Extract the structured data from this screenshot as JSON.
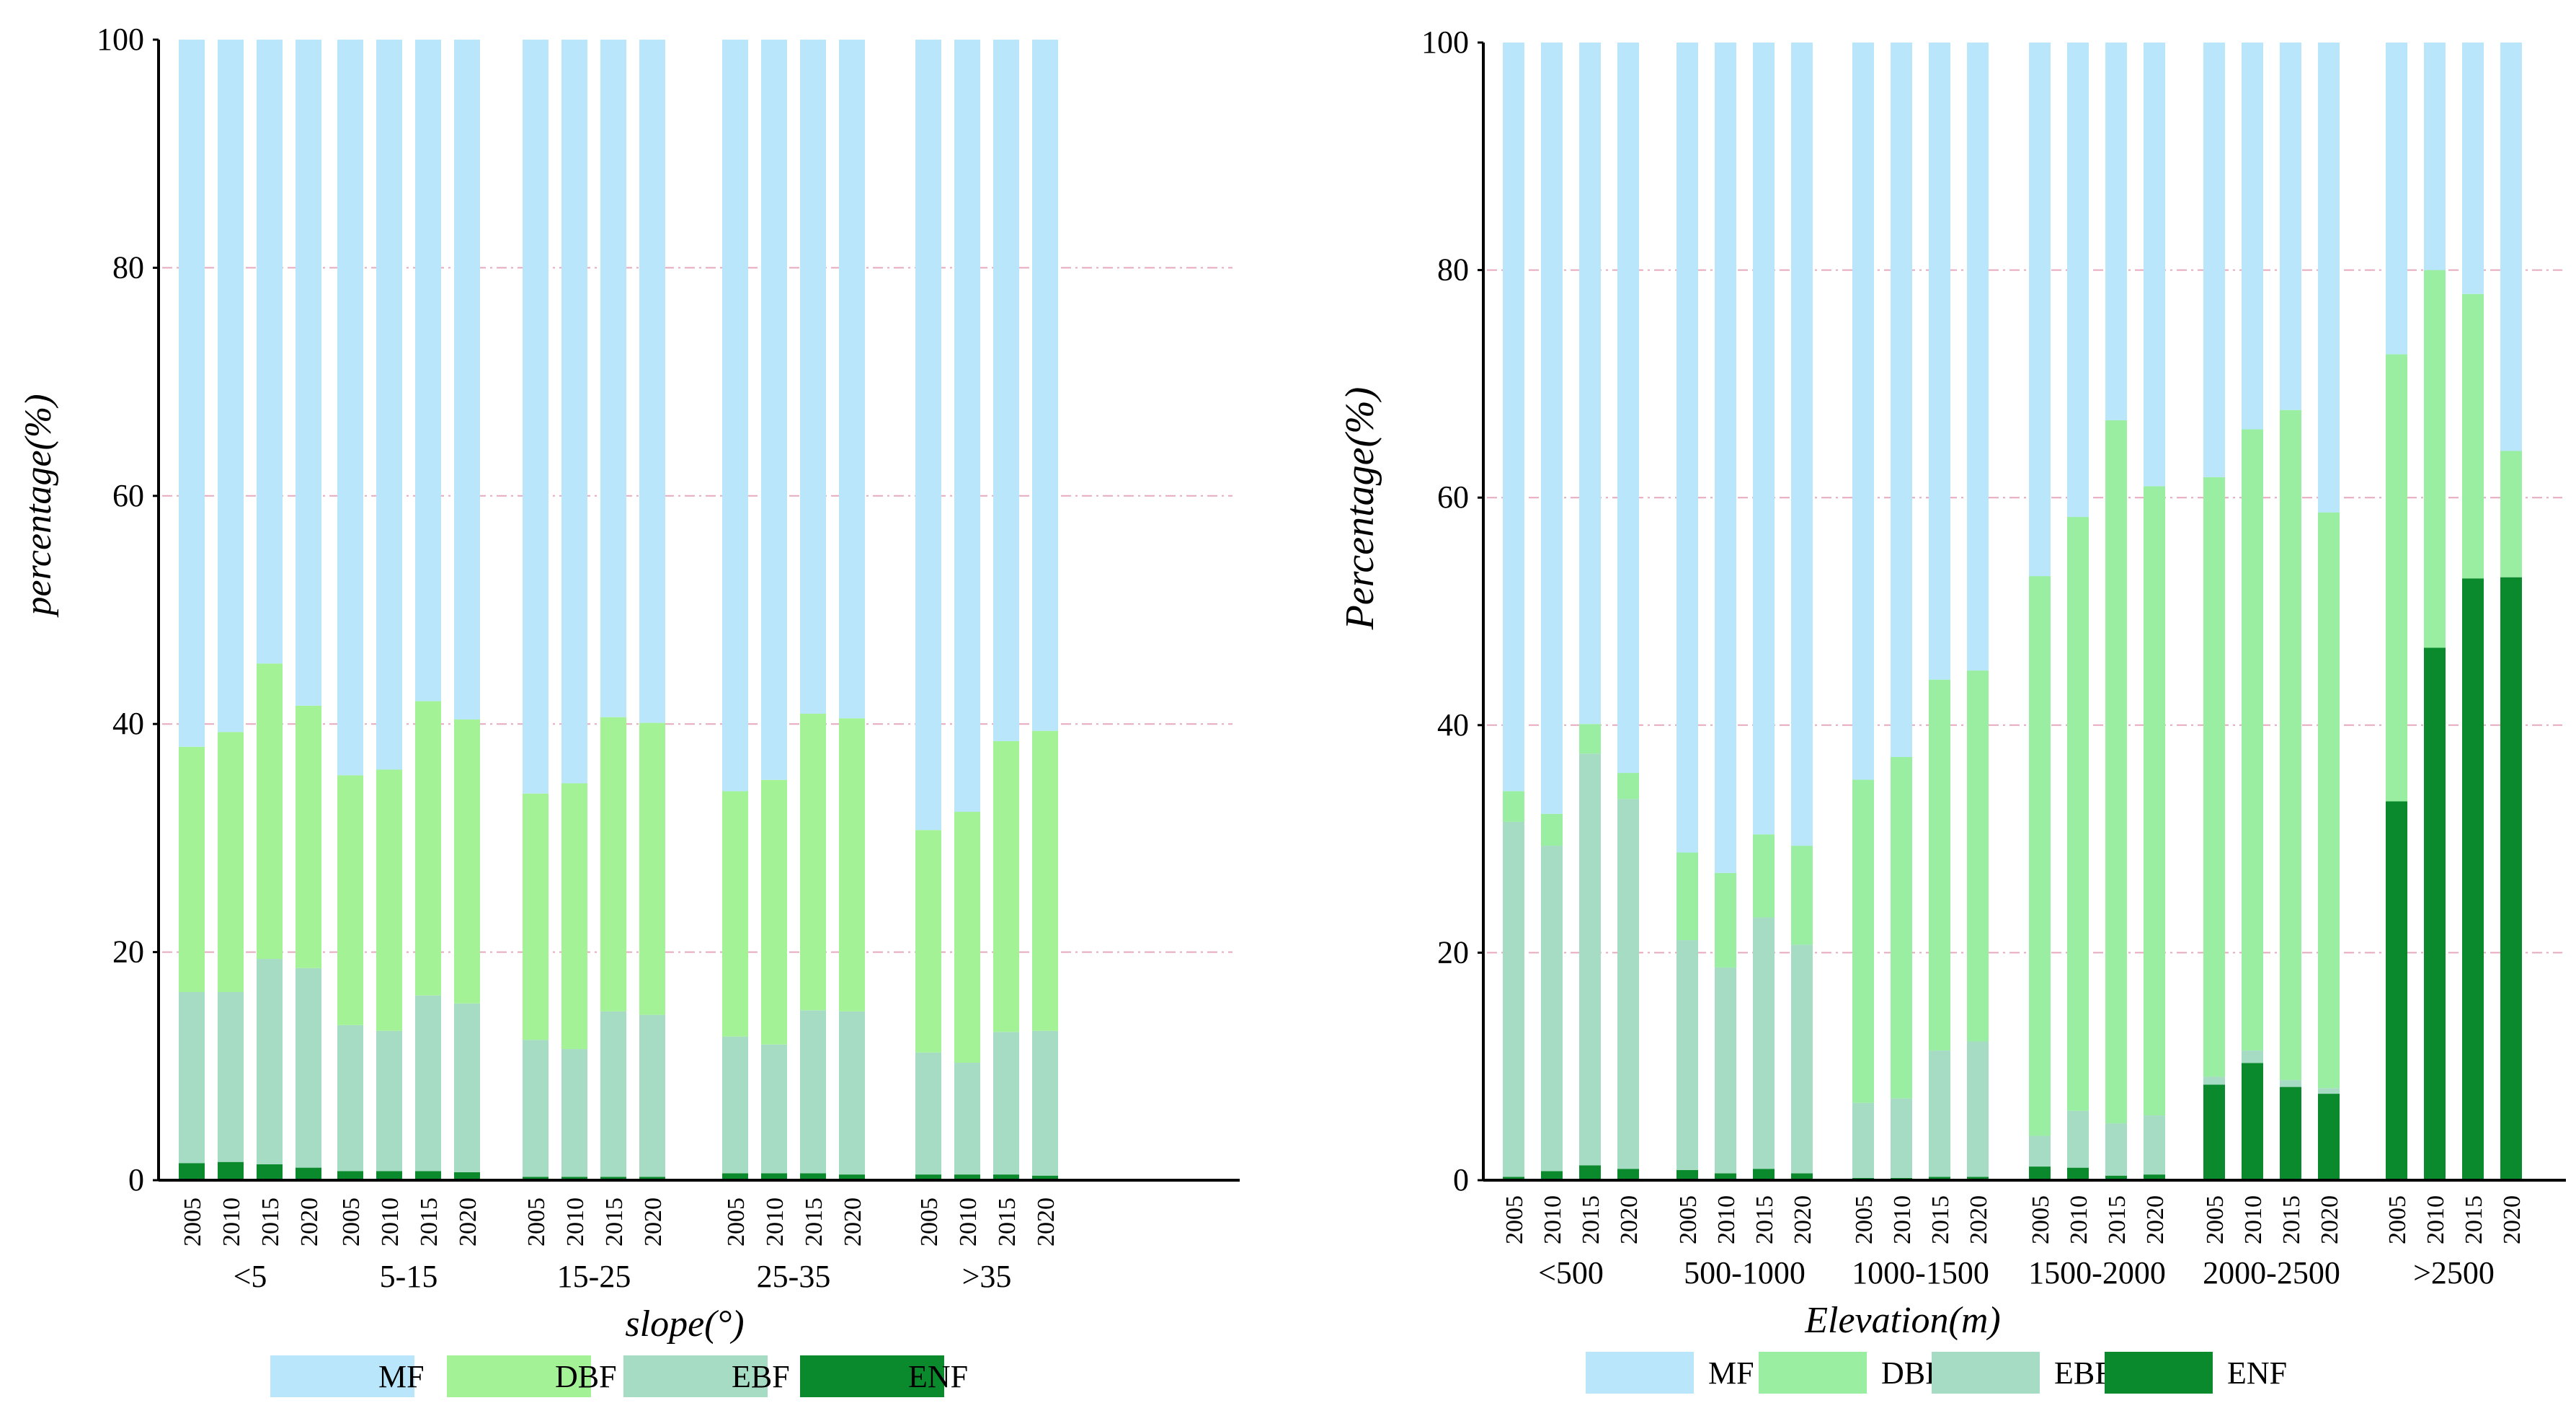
{
  "chart_data": [
    {
      "type": "bar",
      "stacked": true,
      "title": "",
      "xlabel": "slope(°)",
      "ylabel": "percentage(%)",
      "ylim": [
        0,
        100
      ],
      "yticks": [
        0,
        20,
        40,
        60,
        80,
        100
      ],
      "grid": "horizontal dash-dot",
      "legend": "bottom",
      "groups": [
        "<5",
        "5-15",
        "15-25",
        "25-35",
        ">35"
      ],
      "years": [
        "2005",
        "2010",
        "2015",
        "2020"
      ],
      "series": [
        {
          "name": "ENF",
          "color": "#0a8a2c",
          "values": [
            [
              1.5,
              1.6,
              1.4,
              1.1
            ],
            [
              0.8,
              0.8,
              0.8,
              0.7
            ],
            [
              0.3,
              0.3,
              0.3,
              0.3
            ],
            [
              0.6,
              0.6,
              0.6,
              0.5
            ],
            [
              0.5,
              0.5,
              0.5,
              0.4
            ]
          ]
        },
        {
          "name": "EBF",
          "color": "#a6dcc4",
          "values": [
            [
              15.0,
              14.9,
              18.0,
              17.5
            ],
            [
              12.8,
              12.3,
              15.4,
              14.8
            ],
            [
              12.0,
              11.2,
              14.5,
              14.2
            ],
            [
              12.0,
              11.3,
              14.3,
              14.3
            ],
            [
              10.7,
              9.8,
              12.5,
              12.7
            ]
          ]
        },
        {
          "name": "DBF",
          "color": "#a4f296",
          "values": [
            [
              21.5,
              22.8,
              25.9,
              23.0
            ],
            [
              21.9,
              22.9,
              25.8,
              24.9
            ],
            [
              21.6,
              23.3,
              25.8,
              25.6
            ],
            [
              21.5,
              23.2,
              26.0,
              25.7
            ],
            [
              19.5,
              22.0,
              25.5,
              26.3
            ]
          ]
        },
        {
          "name": "MF",
          "color": "#b9e6fa",
          "values": [
            [
              62.0,
              60.7,
              54.7,
              58.4
            ],
            [
              64.5,
              64.0,
              58.0,
              59.6
            ],
            [
              66.1,
              65.2,
              59.4,
              59.9
            ],
            [
              65.9,
              64.9,
              59.1,
              59.5
            ],
            [
              69.3,
              67.7,
              61.5,
              60.6
            ]
          ]
        }
      ]
    },
    {
      "type": "bar",
      "stacked": true,
      "title": "",
      "xlabel": "Elevation(m)",
      "ylabel": "Percentage(%)",
      "ylim": [
        0,
        100
      ],
      "yticks": [
        0,
        20,
        40,
        60,
        80,
        100
      ],
      "grid": "horizontal dash-dot",
      "legend": "bottom",
      "groups": [
        "<500",
        "500-1000",
        "1000-1500",
        "1500-2000",
        "2000-2500",
        ">2500"
      ],
      "years": [
        "2005",
        "2010",
        "2015",
        "2020"
      ],
      "series": [
        {
          "name": "ENF",
          "color": "#0a8a2c",
          "values": [
            [
              0.3,
              0.8,
              1.3,
              1.0
            ],
            [
              0.9,
              0.6,
              1.0,
              0.6
            ],
            [
              0.2,
              0.2,
              0.3,
              0.3
            ],
            [
              1.2,
              1.1,
              0.4,
              0.5
            ],
            [
              8.4,
              10.3,
              8.2,
              7.6
            ],
            [
              33.3,
              46.8,
              52.9,
              53.0
            ]
          ]
        },
        {
          "name": "EBF",
          "color": "#a6dcc4",
          "values": [
            [
              31.2,
              28.6,
              36.2,
              32.5
            ],
            [
              20.2,
              18.1,
              22.1,
              20.1
            ],
            [
              6.6,
              7.0,
              11.1,
              11.9
            ],
            [
              2.7,
              5.0,
              4.6,
              5.2
            ],
            [
              0.7,
              1.1,
              0.6,
              0.5
            ],
            [
              0.0,
              0.0,
              0.0,
              0.0
            ]
          ]
        },
        {
          "name": "DBF",
          "color": "#99eea2",
          "values": [
            [
              2.7,
              2.8,
              2.6,
              2.3
            ],
            [
              7.7,
              8.3,
              7.3,
              8.7
            ],
            [
              28.4,
              30.0,
              32.6,
              32.6
            ],
            [
              49.2,
              52.2,
              61.8,
              55.3
            ],
            [
              52.7,
              54.6,
              58.9,
              50.6
            ],
            [
              39.3,
              33.2,
              25.0,
              11.1
            ]
          ]
        },
        {
          "name": "MF",
          "color": "#b9e6fa",
          "values": [
            [
              65.8,
              67.8,
              59.9,
              64.2
            ],
            [
              71.2,
              73.0,
              69.6,
              70.6
            ],
            [
              64.8,
              62.8,
              56.0,
              55.2
            ],
            [
              46.9,
              41.7,
              33.2,
              39.0
            ],
            [
              38.2,
              34.0,
              32.3,
              41.3
            ],
            [
              27.4,
              20.0,
              22.1,
              35.9
            ]
          ]
        }
      ]
    }
  ],
  "legend_items": [
    "MF",
    "DBF",
    "EBF",
    "ENF"
  ],
  "legend_colors": {
    "MF": "#b9e6fa",
    "DBF_left": "#a4f296",
    "DBF_right": "#99eea2",
    "EBF": "#a6dcc4",
    "ENF": "#0a8a2c"
  },
  "grid_color": "#e7a9bd"
}
